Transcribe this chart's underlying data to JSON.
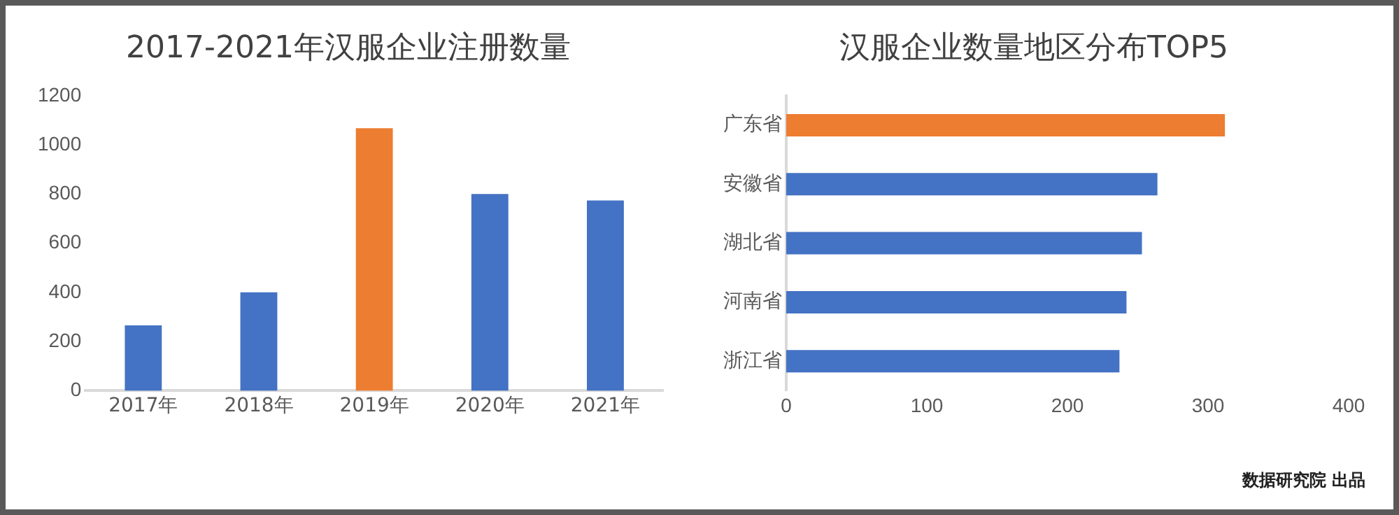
{
  "chart_data": [
    {
      "type": "bar",
      "title": "2017-2021年汉服企业注册数量",
      "categories": [
        "2017年",
        "2018年",
        "2019年",
        "2020年",
        "2021年"
      ],
      "values": [
        266,
        400,
        1068,
        800,
        774
      ],
      "colors": [
        "#4472c4",
        "#4472c4",
        "#ed7d31",
        "#4472c4",
        "#4472c4"
      ],
      "ylim": [
        0,
        1200
      ],
      "yticks": [
        0,
        200,
        400,
        600,
        800,
        1000,
        1200
      ],
      "grid": false,
      "legend": false
    },
    {
      "type": "bar",
      "orientation": "horizontal",
      "title": "汉服企业数量地区分布TOP5",
      "categories": [
        "广东省",
        "安徽省",
        "湖北省",
        "河南省",
        "浙江省"
      ],
      "values": [
        312,
        264,
        253,
        242,
        237
      ],
      "colors": [
        "#ed7d31",
        "#4472c4",
        "#4472c4",
        "#4472c4",
        "#4472c4"
      ],
      "xlim": [
        0,
        400
      ],
      "xticks": [
        0,
        100,
        200,
        300,
        400
      ],
      "grid": false,
      "legend": false,
      "annotations": [
        "数据研究院 出品"
      ]
    }
  ]
}
